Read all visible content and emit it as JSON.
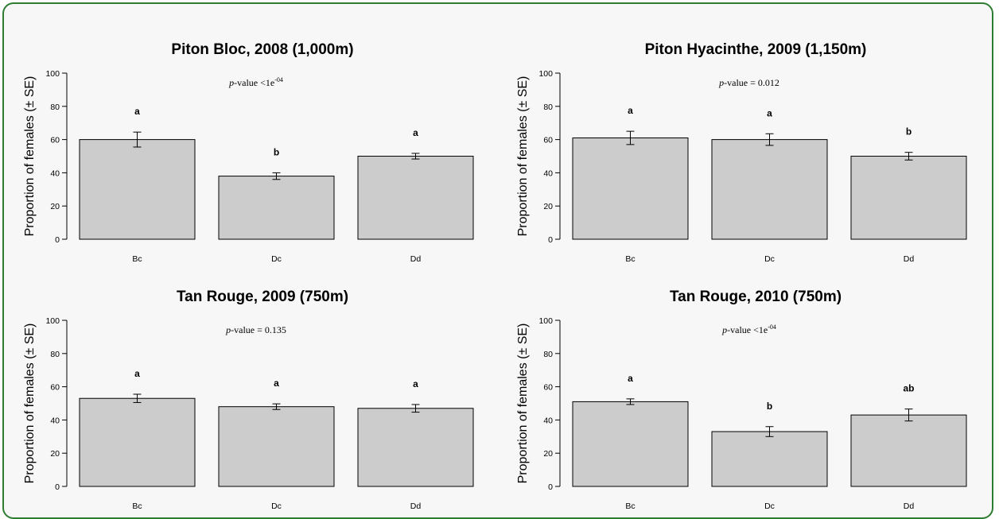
{
  "chart_data": [
    {
      "type": "bar",
      "title": "Piton Bloc, 2008 (1,000m)",
      "ylabel": "Proportion of females (± SE)",
      "xlabel": "",
      "categories": [
        "Bc",
        "Dc",
        "Dd"
      ],
      "values": [
        60,
        38,
        50
      ],
      "errors": [
        4.5,
        2,
        1.7
      ],
      "significance_letters": [
        "a",
        "b",
        "a"
      ],
      "pvalue": {
        "label": "p",
        "rest": "-value <1e",
        "sup": "-04"
      },
      "ylim": [
        0,
        100
      ],
      "yticks": [
        "0",
        "20",
        "40",
        "60",
        "80",
        "100"
      ],
      "grid": false
    },
    {
      "type": "bar",
      "title": "Piton Hyacinthe, 2009 (1,150m)",
      "ylabel": "Proportion of females (± SE)",
      "xlabel": "",
      "categories": [
        "Bc",
        "Dc",
        "Dd"
      ],
      "values": [
        61,
        60,
        50
      ],
      "errors": [
        4,
        3.5,
        2.3
      ],
      "significance_letters": [
        "a",
        "a",
        "b"
      ],
      "pvalue": {
        "label": "p",
        "rest": "-value = 0.012",
        "sup": ""
      },
      "ylim": [
        0,
        100
      ],
      "yticks": [
        "0",
        "20",
        "40",
        "60",
        "80",
        "100"
      ],
      "grid": false
    },
    {
      "type": "bar",
      "title": "Tan Rouge, 2009 (750m)",
      "ylabel": "Proportion of females (± SE)",
      "xlabel": "",
      "categories": [
        "Bc",
        "Dc",
        "Dd"
      ],
      "values": [
        53,
        48,
        47
      ],
      "errors": [
        2.5,
        1.7,
        2.3
      ],
      "significance_letters": [
        "a",
        "a",
        "a"
      ],
      "pvalue": {
        "label": "p",
        "rest": "-value = 0.135",
        "sup": ""
      },
      "ylim": [
        0,
        100
      ],
      "yticks": [
        "0",
        "20",
        "40",
        "60",
        "80",
        "100"
      ],
      "grid": false
    },
    {
      "type": "bar",
      "title": "Tan Rouge, 2010 (750m)",
      "ylabel": "Proportion of females (± SE)",
      "xlabel": "",
      "categories": [
        "Bc",
        "Dc",
        "Dd"
      ],
      "values": [
        51,
        33,
        43
      ],
      "errors": [
        1.7,
        3,
        3.6
      ],
      "significance_letters": [
        "a",
        "b",
        "ab"
      ],
      "pvalue": {
        "label": "p",
        "rest": "-value <1e",
        "sup": "-04"
      },
      "ylim": [
        0,
        100
      ],
      "yticks": [
        "0",
        "20",
        "40",
        "60",
        "80",
        "100"
      ],
      "grid": false
    }
  ],
  "colors": {
    "bar_fill": "#cccccc",
    "bar_stroke": "#000000",
    "frame_border": "#2e7d32",
    "panel_bg": "#f7f7f7"
  }
}
